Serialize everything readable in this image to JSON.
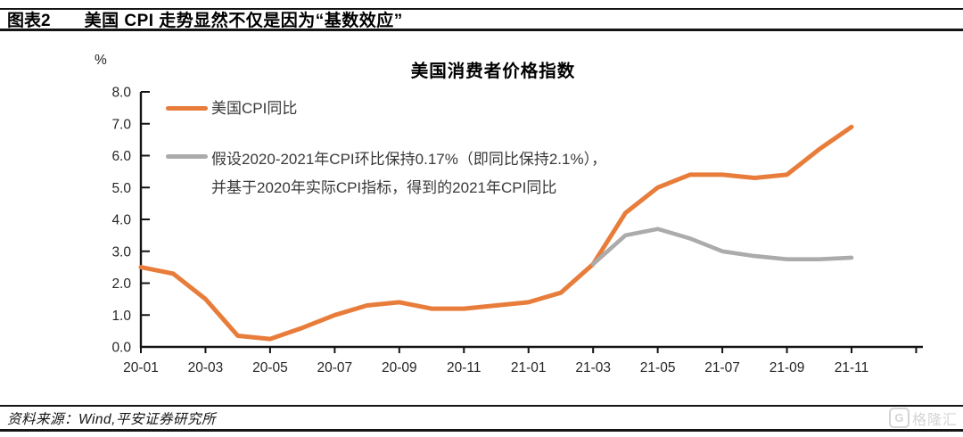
{
  "header": {
    "figure_label": "图表2",
    "title": "美国 CPI 走势显然不仅是因为“基数效应”"
  },
  "chart_data": {
    "type": "line",
    "title": "美国消费者价格指数",
    "unit_label": "%",
    "ylim": [
      0.0,
      8.0
    ],
    "ytick_step": 1.0,
    "ytick_labels": [
      "0.0",
      "1.0",
      "2.0",
      "3.0",
      "4.0",
      "5.0",
      "6.0",
      "7.0",
      "8.0"
    ],
    "x": [
      "20-01",
      "20-02",
      "20-03",
      "20-04",
      "20-05",
      "20-06",
      "20-07",
      "20-08",
      "20-09",
      "20-10",
      "20-11",
      "20-12",
      "21-01",
      "21-02",
      "21-03",
      "21-04",
      "21-05",
      "21-06",
      "21-07",
      "21-08",
      "21-09",
      "21-10",
      "21-11"
    ],
    "xtick_labels": [
      "20-01",
      "20-03",
      "20-05",
      "20-07",
      "20-09",
      "20-11",
      "21-01",
      "21-03",
      "21-05",
      "21-07",
      "21-09",
      "21-11"
    ],
    "grid": false,
    "legend_position": "top-left-inside",
    "axis_color": "#141414",
    "series": [
      {
        "name": "美国CPI同比",
        "color": "#E87D3B",
        "values": [
          2.5,
          2.3,
          1.5,
          0.35,
          0.25,
          0.6,
          1.0,
          1.3,
          1.4,
          1.2,
          1.2,
          1.3,
          1.4,
          1.7,
          2.6,
          4.2,
          5.0,
          5.4,
          5.4,
          5.3,
          5.4,
          6.2,
          6.9
        ]
      },
      {
        "name": "假设2020-2021年CPI环比保持0.17%（即同比保持2.1%），并基于2020年实际CPI指标，得到的2021年CPI同比",
        "color": "#ABABAB",
        "values": [
          null,
          null,
          null,
          null,
          null,
          null,
          null,
          null,
          null,
          null,
          null,
          null,
          null,
          null,
          2.6,
          3.5,
          3.7,
          3.4,
          3.0,
          2.85,
          2.75,
          2.75,
          2.8
        ]
      }
    ],
    "legend": [
      {
        "lines": [
          "美国CPI同比"
        ]
      },
      {
        "lines": [
          "假设2020-2021年CPI环比保持0.17%（即同比保持2.1%），",
          "并基于2020年实际CPI指标，得到的2021年CPI同比"
        ]
      }
    ]
  },
  "footer": {
    "source": "资料来源：Wind,平安证券研究所",
    "logo": {
      "icon": "G",
      "text": "格隆汇"
    }
  }
}
